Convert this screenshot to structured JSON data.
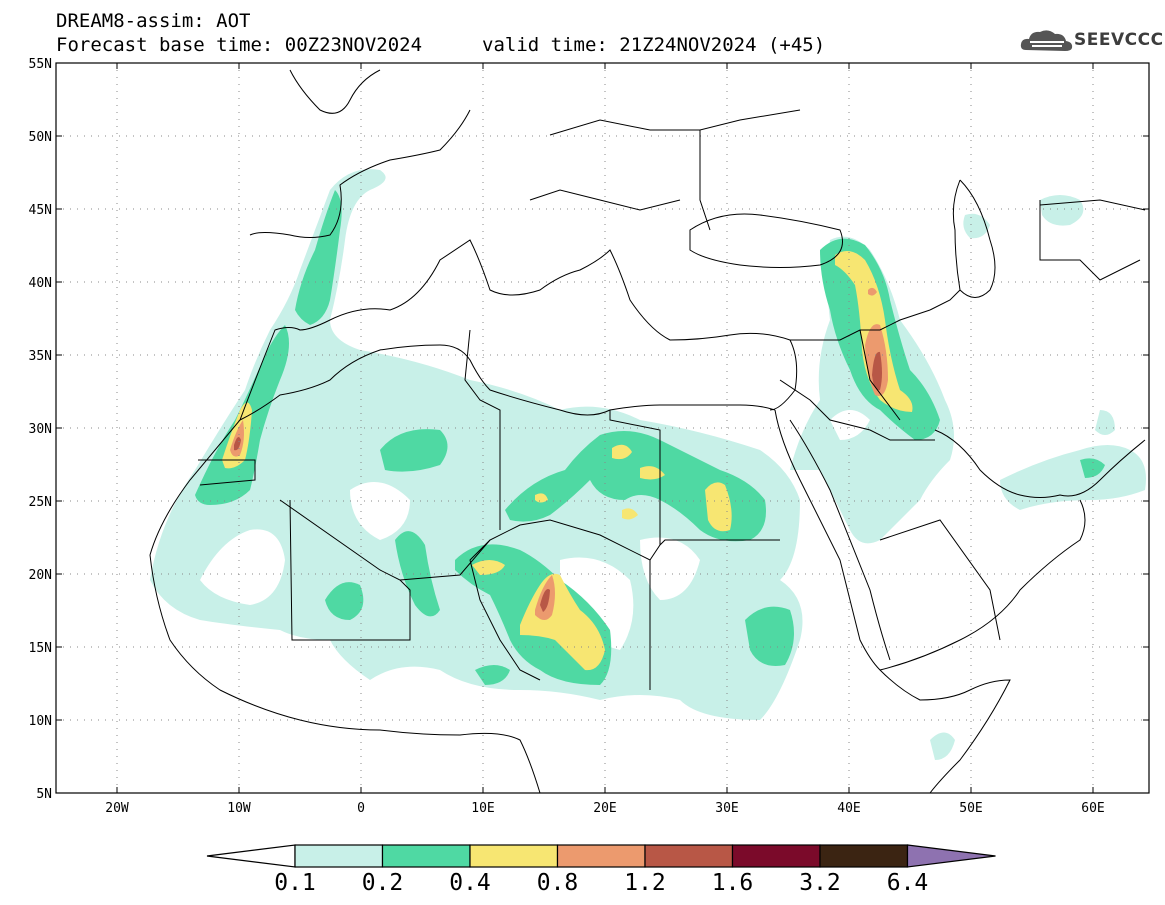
{
  "header": {
    "line1": "DREAM8-assim: AOT",
    "line2": "Forecast base time: 00Z23NOV2024",
    "line2b": "valid time: 21Z24NOV2024 (+45)"
  },
  "logo": {
    "text": "SEEVCCC",
    "icon": "cloud-logo-icon"
  },
  "axes": {
    "lat_labels": [
      "55N",
      "50N",
      "45N",
      "40N",
      "35N",
      "30N",
      "25N",
      "20N",
      "15N",
      "10N",
      "5N"
    ],
    "lon_labels": [
      "20W",
      "10W",
      "0",
      "10E",
      "20E",
      "30E",
      "40E",
      "50E",
      "60E"
    ]
  },
  "colorbar": {
    "labels": [
      "0.1",
      "0.2",
      "0.4",
      "0.8",
      "1.2",
      "1.6",
      "3.2",
      "6.4"
    ],
    "colors": [
      "#ffffff",
      "#c8f0e8",
      "#4fd9a3",
      "#f7e672",
      "#ec9a6e",
      "#b85746",
      "#7b0a2a",
      "#3b2412",
      "#8e72b0"
    ]
  },
  "map_colors": {
    "level1": "#c8f0e8",
    "level2": "#4fd9a3",
    "level3": "#f7e672",
    "level4": "#ec9a6e",
    "level5": "#b85746"
  }
}
